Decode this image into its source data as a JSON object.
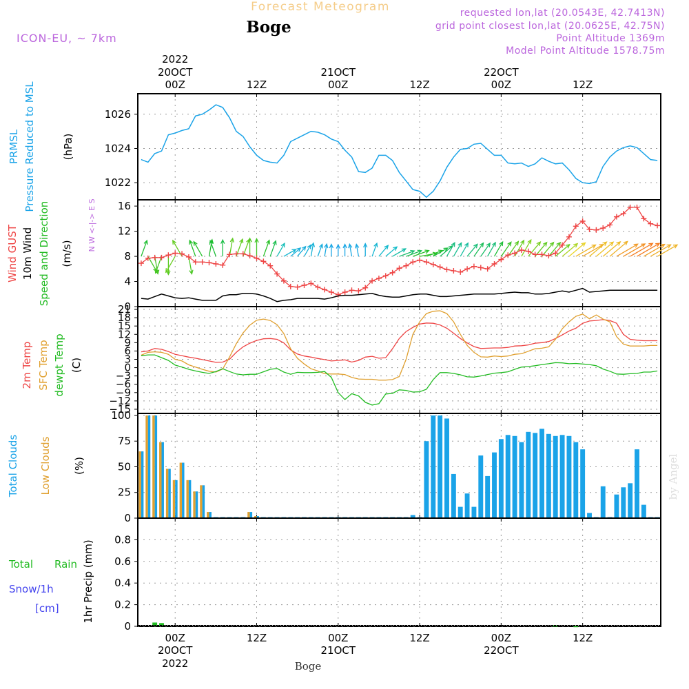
{
  "header": {
    "title": "Forecast Meteogram",
    "location": "Boge",
    "model": "ICON-EU, ~ 7km",
    "requested": "requested lon,lat (20.0543E, 42.7413N)",
    "gridpoint": "grid point closest lon,lat (20.0625E, 42.75N)",
    "point_alt": "Point Altitude 1369m",
    "model_alt": "Model Point Altitude 1578.75m"
  },
  "time_axis": {
    "top": [
      {
        "l1": "2022",
        "l2": "20OCT",
        "l3": "00Z",
        "h": 0
      },
      {
        "l1": "",
        "l2": "",
        "l3": "12Z",
        "h": 12
      },
      {
        "l1": "",
        "l2": "21OCT",
        "l3": "00Z",
        "h": 24
      },
      {
        "l1": "",
        "l2": "",
        "l3": "12Z",
        "h": 36
      },
      {
        "l1": "",
        "l2": "22OCT",
        "l3": "00Z",
        "h": 48
      },
      {
        "l1": "",
        "l2": "",
        "l3": "12Z",
        "h": 60
      }
    ],
    "bottom": [
      {
        "l1": "00Z",
        "l2": "20OCT",
        "l3": "2022",
        "h": 0
      },
      {
        "l1": "12Z",
        "l2": "",
        "l3": "",
        "h": 12
      },
      {
        "l1": "00Z",
        "l2": "21OCT",
        "l3": "",
        "h": 24
      },
      {
        "l1": "12Z",
        "l2": "",
        "l3": "",
        "h": 36
      },
      {
        "l1": "00Z",
        "l2": "22OCT",
        "l3": "",
        "h": 48
      },
      {
        "l1": "12Z",
        "l2": "",
        "l3": "",
        "h": 60
      }
    ],
    "xlim": [
      -5.5,
      71.5
    ],
    "footer": "Boge"
  },
  "panels": {
    "pressure": {
      "labels": [
        "PRMSL",
        "Pressure Reduced to MSL"
      ],
      "unit": "(hPa)",
      "ylim": [
        1021,
        1027.2
      ],
      "yticks": [
        1022,
        1024,
        1026
      ],
      "color": "#1aa3e8"
    },
    "wind": {
      "labels": [
        "Wind GUST",
        "10m Wind",
        "Speed and Direction"
      ],
      "unit": "(m/s)",
      "compass": "N\nW <-|-> E\nS",
      "ylim": [
        0,
        17
      ],
      "yticks": [
        0,
        4,
        8,
        12,
        16
      ]
    },
    "temp": {
      "labels": [
        "2m Temp",
        "SFC Temp",
        "dewpt Temp"
      ],
      "unit": "(C)",
      "ylim": [
        -16.5,
        22
      ],
      "yticks": [
        -15,
        -12,
        -9,
        -6,
        -3,
        0,
        3,
        6,
        9,
        12,
        15,
        18,
        21
      ]
    },
    "clouds": {
      "labels": [
        "Total Clouds",
        "Low Clouds"
      ],
      "unit": "(%)",
      "ylim": [
        0,
        102
      ],
      "yticks": [
        0,
        25,
        50,
        75,
        100
      ]
    },
    "precip": {
      "labels": [
        "Total",
        "Rain",
        "Snow/1h",
        "[cm]"
      ],
      "ylabel": "1hr Precip (mm)",
      "ylim": [
        0,
        1
      ],
      "yticks": [
        0,
        0.2,
        0.4,
        0.6,
        0.8
      ],
      "tick_labels": [
        "0",
        "0.2",
        "0.4",
        "0.6",
        "0.8"
      ]
    }
  },
  "watermark": "by Angel",
  "colors": {
    "pressure": "#1aa3e8",
    "gust": "#ee4444",
    "wind": "#000000",
    "temp2m": "#ee4444",
    "sfc": "#e0a030",
    "dewpt": "#22bb22",
    "total_clouds": "#1aa3e8",
    "low_clouds": "#e0a030",
    "rain": "#22bb22",
    "snow": "#4444ee",
    "grid": "#999999",
    "header_purple": "#bb66dd",
    "title_orange": "#f5cd8a"
  },
  "chart_data": {
    "type": "meteogram",
    "x_units": "hours since 2022-10-20 00Z",
    "pressure": {
      "x": [
        -5,
        -4,
        -3,
        -2,
        -1,
        0,
        1,
        2,
        3,
        4,
        5,
        6,
        7,
        8,
        9,
        10,
        11,
        12,
        13,
        14,
        15,
        16,
        17,
        18,
        19,
        20,
        21,
        22,
        23,
        24,
        25,
        26,
        27,
        28,
        29,
        30,
        31,
        32,
        33,
        34,
        35,
        36,
        37,
        38,
        39,
        40,
        41,
        42,
        43,
        44,
        45,
        46,
        47,
        48,
        49,
        50,
        51,
        52,
        53,
        54,
        55,
        56,
        57,
        58,
        59,
        60,
        61,
        62,
        63,
        64,
        65,
        66,
        67,
        68,
        69,
        70,
        71
      ],
      "values": [
        1023.35,
        1023.2,
        1023.7,
        1023.85,
        1024.8,
        1024.9,
        1025.05,
        1025.15,
        1025.9,
        1026.0,
        1026.25,
        1026.55,
        1026.4,
        1025.8,
        1025.0,
        1024.7,
        1024.1,
        1023.6,
        1023.3,
        1023.2,
        1023.15,
        1023.6,
        1024.4,
        1024.6,
        1024.8,
        1025.0,
        1024.95,
        1024.8,
        1024.55,
        1024.4,
        1023.9,
        1023.5,
        1022.65,
        1022.6,
        1022.85,
        1023.6,
        1023.6,
        1023.3,
        1022.6,
        1022.1,
        1021.6,
        1021.5,
        1021.15,
        1021.5,
        1022.1,
        1022.9,
        1023.5,
        1023.95,
        1024.0,
        1024.25,
        1024.3,
        1023.95,
        1023.6,
        1023.6,
        1023.15,
        1023.1,
        1023.15,
        1022.95,
        1023.1,
        1023.45,
        1023.25,
        1023.1,
        1023.15,
        1022.75,
        1022.25,
        1022.0,
        1021.95,
        1022.05,
        1022.95,
        1023.5,
        1023.85,
        1024.05,
        1024.15,
        1024.05,
        1023.7,
        1023.35,
        1023.3
      ]
    },
    "wind": {
      "x": [
        -5,
        -4,
        -3,
        -2,
        -1,
        0,
        1,
        2,
        3,
        4,
        5,
        6,
        7,
        8,
        9,
        10,
        11,
        12,
        13,
        14,
        15,
        16,
        17,
        18,
        19,
        20,
        21,
        22,
        23,
        24,
        25,
        26,
        27,
        28,
        29,
        30,
        31,
        32,
        33,
        34,
        35,
        36,
        37,
        38,
        39,
        40,
        41,
        42,
        43,
        44,
        45,
        46,
        47,
        48,
        49,
        50,
        51,
        52,
        53,
        54,
        55,
        56,
        57,
        58,
        59,
        60,
        61,
        62,
        63,
        64,
        65,
        66,
        67,
        68,
        69,
        70,
        71
      ],
      "gust": [
        6.9,
        7.7,
        7.8,
        7.8,
        8.2,
        8.5,
        8.4,
        7.9,
        7.1,
        7.1,
        7.0,
        6.8,
        6.6,
        8.3,
        8.4,
        8.4,
        8.1,
        7.7,
        7.2,
        6.5,
        5.2,
        4.1,
        3.2,
        3.1,
        3.4,
        3.7,
        3.1,
        2.7,
        2.3,
        1.9,
        2.3,
        2.6,
        2.5,
        3.0,
        4.1,
        4.5,
        4.9,
        5.4,
        6.1,
        6.5,
        7.1,
        7.4,
        7.1,
        6.7,
        6.3,
        5.9,
        5.7,
        5.5,
        6.0,
        6.4,
        6.2,
        6.0,
        6.8,
        7.5,
        8.2,
        8.5,
        9.0,
        8.8,
        8.3,
        8.3,
        8.1,
        8.5,
        9.8,
        11.1,
        12.8,
        13.6,
        12.3,
        12.2,
        12.5,
        13.0,
        14.3,
        14.8,
        15.8,
        15.8,
        14.0,
        13.2,
        12.9
      ],
      "speed": [
        1.3,
        1.2,
        1.6,
        2.0,
        1.7,
        1.4,
        1.3,
        1.4,
        1.2,
        1.0,
        1.0,
        1.0,
        1.7,
        1.9,
        1.9,
        2.1,
        2.1,
        2.0,
        1.7,
        1.3,
        0.8,
        1.0,
        1.1,
        1.3,
        1.3,
        1.3,
        1.3,
        1.2,
        1.4,
        1.7,
        1.8,
        1.8,
        1.9,
        2.0,
        2.1,
        1.8,
        1.6,
        1.5,
        1.5,
        1.7,
        1.9,
        2.0,
        2.0,
        1.8,
        1.6,
        1.6,
        1.7,
        1.8,
        1.9,
        2.0,
        2.0,
        2.0,
        2.0,
        2.1,
        2.2,
        2.3,
        2.2,
        2.2,
        2.0,
        2.0,
        2.1,
        2.3,
        2.5,
        2.3,
        2.6,
        2.9,
        2.3,
        2.4,
        2.5,
        2.6,
        2.6,
        2.6,
        2.6,
        2.6,
        2.6,
        2.6,
        2.6
      ],
      "dir_deg": [
        200,
        330,
        350,
        20,
        0,
        30,
        150,
        350,
        160,
        150,
        190,
        160,
        180,
        190,
        200,
        200,
        180,
        180,
        200,
        200,
        210,
        240,
        230,
        220,
        210,
        190,
        200,
        190,
        180,
        180,
        180,
        170,
        170,
        180,
        200,
        220,
        230,
        240,
        250,
        250,
        250,
        260,
        250,
        240,
        230,
        210,
        210,
        210,
        220,
        215,
        215,
        210,
        210,
        215,
        215,
        210,
        210,
        220,
        220,
        220,
        220,
        230,
        230,
        230,
        240,
        240,
        230,
        230,
        230,
        230,
        240,
        240,
        240,
        240,
        240,
        240,
        240
      ]
    },
    "temperature": {
      "x": [
        -5,
        -4,
        -3,
        -2,
        -1,
        0,
        1,
        2,
        3,
        4,
        5,
        6,
        7,
        8,
        9,
        10,
        11,
        12,
        13,
        14,
        15,
        16,
        17,
        18,
        19,
        20,
        21,
        22,
        23,
        24,
        25,
        26,
        27,
        28,
        29,
        30,
        31,
        32,
        33,
        34,
        35,
        36,
        37,
        38,
        39,
        40,
        41,
        42,
        43,
        44,
        45,
        46,
        47,
        48,
        49,
        50,
        51,
        52,
        53,
        54,
        55,
        56,
        57,
        58,
        59,
        60,
        61,
        62,
        63,
        64,
        65,
        66,
        67,
        68,
        69,
        70,
        71
      ],
      "t2m": [
        5.7,
        6.0,
        6.9,
        6.6,
        5.8,
        4.8,
        4.3,
        3.8,
        3.4,
        2.9,
        2.4,
        1.9,
        2.0,
        3.0,
        5.5,
        7.5,
        8.8,
        9.8,
        10.4,
        10.5,
        10.2,
        8.9,
        6.4,
        4.9,
        4.2,
        3.8,
        3.3,
        2.9,
        2.4,
        2.6,
        2.8,
        2.0,
        2.6,
        3.8,
        4.1,
        3.4,
        3.6,
        6.8,
        10.5,
        13.0,
        14.5,
        15.7,
        16.1,
        16.0,
        15.4,
        14.2,
        12.4,
        10.5,
        8.9,
        7.6,
        6.9,
        7.0,
        7.1,
        7.1,
        7.3,
        7.8,
        7.9,
        8.2,
        8.8,
        9.0,
        9.4,
        10.5,
        11.8,
        13.2,
        14.2,
        16.0,
        16.8,
        17.0,
        17.3,
        17.0,
        16.0,
        12.0,
        10.2,
        9.9,
        9.7,
        9.7,
        9.7
      ],
      "sfc": [
        4.5,
        5.5,
        5.7,
        5.5,
        4.8,
        3.0,
        2.4,
        1.0,
        0.2,
        -0.6,
        -1.3,
        -1.6,
        -0.5,
        3.8,
        8.6,
        12.5,
        15.3,
        17.1,
        17.5,
        17.0,
        15.5,
        12.3,
        6.8,
        3.4,
        1.3,
        -0.4,
        -1.2,
        -2.2,
        -2.3,
        -2.3,
        -2.5,
        -3.5,
        -4.1,
        -4.2,
        -4.2,
        -4.5,
        -4.5,
        -4.3,
        -3.2,
        3.0,
        12.0,
        16.5,
        19.5,
        20.3,
        20.5,
        19.5,
        16.5,
        12.0,
        8.0,
        5.5,
        3.9,
        3.8,
        4.2,
        4.0,
        4.2,
        4.8,
        5.0,
        5.9,
        6.8,
        7.0,
        7.5,
        10.2,
        14.0,
        16.5,
        18.5,
        19.3,
        17.6,
        19.0,
        17.5,
        16.5,
        11.2,
        8.5,
        7.8,
        7.8,
        7.8,
        8.0,
        8.0
      ],
      "dewpt": [
        4.3,
        4.6,
        4.6,
        3.6,
        2.6,
        0.9,
        0.2,
        -0.6,
        -1.2,
        -1.7,
        -2.1,
        -1.4,
        -0.4,
        -1.4,
        -2.3,
        -2.6,
        -2.4,
        -2.4,
        -1.5,
        -0.6,
        -0.3,
        -1.6,
        -2.4,
        -1.7,
        -1.8,
        -1.8,
        -1.7,
        -1.4,
        -3.5,
        -9.0,
        -11.5,
        -9.4,
        -10.2,
        -12.5,
        -13.5,
        -13.0,
        -9.5,
        -9.3,
        -8.0,
        -8.2,
        -8.8,
        -8.7,
        -7.8,
        -4.3,
        -1.8,
        -1.8,
        -2.1,
        -2.6,
        -3.3,
        -3.4,
        -3.0,
        -2.5,
        -2.0,
        -1.8,
        -1.5,
        -0.6,
        0.2,
        0.4,
        0.7,
        1.1,
        1.4,
        1.8,
        1.7,
        1.4,
        1.5,
        1.3,
        1.1,
        0.7,
        -0.5,
        -1.3,
        -2.3,
        -2.4,
        -2.2,
        -2.1,
        -1.6,
        -1.6,
        -1.2
      ]
    },
    "clouds": {
      "hours": [
        -5,
        -4,
        -3,
        -2,
        -1,
        0,
        1,
        2,
        3,
        4,
        5,
        6,
        7,
        8,
        9,
        10,
        11,
        12,
        13,
        14,
        15,
        16,
        17,
        18,
        19,
        20,
        21,
        22,
        23,
        24,
        25,
        26,
        27,
        28,
        29,
        30,
        31,
        32,
        33,
        34,
        35,
        36,
        37,
        38,
        39,
        40,
        41,
        42,
        43,
        44,
        45,
        46,
        47,
        48,
        49,
        50,
        51,
        52,
        53,
        54,
        55,
        56,
        57,
        58,
        59,
        60,
        61,
        62,
        63,
        64,
        65,
        66,
        67,
        68,
        69,
        70,
        71
      ],
      "total": [
        65,
        100,
        100,
        74,
        48,
        37,
        54,
        37,
        26,
        32,
        6,
        0,
        0,
        0,
        0,
        0,
        6,
        2,
        0,
        0,
        0,
        0,
        0,
        0,
        0,
        0,
        0,
        0,
        0,
        0,
        0,
        0,
        0,
        0,
        0,
        0,
        0,
        0,
        0,
        0,
        3,
        0,
        75,
        100,
        100,
        97,
        43,
        11,
        24,
        11,
        61,
        41,
        64,
        77,
        81,
        80,
        74,
        84,
        83,
        87,
        82,
        80,
        81,
        80,
        74,
        67,
        5,
        0,
        31,
        0,
        23,
        30,
        34,
        67,
        13,
        0,
        0
      ],
      "low": [
        65,
        100,
        100,
        74,
        48,
        37,
        54,
        37,
        26,
        32,
        6,
        0,
        0,
        0,
        0,
        0,
        6,
        2,
        0,
        0,
        0,
        0,
        0,
        0,
        0,
        0,
        0,
        0,
        0,
        0,
        0,
        0,
        0,
        0,
        0,
        0,
        0,
        0,
        0,
        0,
        0,
        0,
        0,
        0,
        0,
        0,
        0,
        0,
        0,
        0,
        0,
        0,
        0,
        0,
        0,
        0,
        0,
        0,
        0,
        0,
        0,
        0,
        0,
        0,
        0,
        0,
        0,
        0,
        0,
        0,
        0,
        0,
        0,
        0,
        0,
        0,
        0
      ]
    },
    "precip": {
      "rain": [
        {
          "h": -3,
          "mm": 0.035
        },
        {
          "h": -2,
          "mm": 0.03
        },
        {
          "h": 56,
          "mm": 0.01
        },
        {
          "h": 59,
          "mm": 0.005
        }
      ],
      "snow": []
    }
  }
}
